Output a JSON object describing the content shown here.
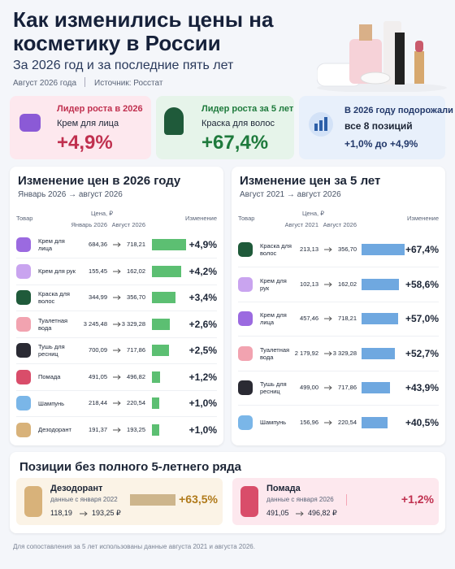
{
  "header": {
    "title": "Как изменились цены на косметику в России",
    "subtitle": "За 2026 год и за последние пять лет",
    "date": "Август 2026 года",
    "source": "Источник: Росстат"
  },
  "cards": [
    {
      "label": "Лидер роста в 2026",
      "item": "Крем для лица",
      "value": "+4,9%"
    },
    {
      "label": "Лидер роста за 5 лет",
      "item": "Краска для волос",
      "value": "+67,4%"
    },
    {
      "label": "В 2026 году подорожали",
      "item": "все 8 позиций",
      "value": "+1,0% до +4,9%"
    }
  ],
  "table_2026": {
    "title": "Изменение цен в 2026 году",
    "period": "Январь 2026 → август 2026",
    "columns": {
      "item": "Товар",
      "price": "Цена, ₽",
      "from": "Январь 2026",
      "to": "Август 2026",
      "change": "Изменение"
    },
    "rows": [
      {
        "name": "Крем для лица",
        "from": "684,36",
        "to": "718,21",
        "change": {
          "value": 4.9,
          "label": "+4,9%"
        }
      },
      {
        "name": "Крем для рук",
        "from": "155,45",
        "to": "162,02",
        "change": {
          "value": 4.2,
          "label": "+4,2%"
        }
      },
      {
        "name": "Краска для волос",
        "from": "344,99",
        "to": "356,70",
        "change": {
          "value": 3.4,
          "label": "+3,4%"
        }
      },
      {
        "name": "Туалетная вода",
        "from": "3 245,48",
        "to": "3 329,28",
        "change": {
          "value": 2.6,
          "label": "+2,6%"
        }
      },
      {
        "name": "Тушь для ресниц",
        "from": "700,09",
        "to": "717,86",
        "change": {
          "value": 2.5,
          "label": "+2,5%"
        }
      },
      {
        "name": "Помада",
        "from": "491,05",
        "to": "496,82",
        "change": {
          "value": 1.2,
          "label": "+1,2%"
        }
      },
      {
        "name": "Шампунь",
        "from": "218,44",
        "to": "220,54",
        "change": {
          "value": 1.0,
          "label": "+1,0%"
        }
      },
      {
        "name": "Дезодорант",
        "from": "191,37",
        "to": "193,25",
        "change": {
          "value": 1.0,
          "label": "+1,0%"
        }
      }
    ]
  },
  "table_5y": {
    "title": "Изменение цен за 5 лет",
    "period": "Август 2021 → август 2026",
    "columns": {
      "item": "Товар",
      "price": "Цена, ₽",
      "from": "Август 2021",
      "to": "Август 2026",
      "change": "Изменение"
    },
    "rows": [
      {
        "name": "Краска для волос",
        "from": "213,13",
        "to": "356,70",
        "change": {
          "value": 67.4,
          "label": "+67,4%"
        }
      },
      {
        "name": "Крем для рук",
        "from": "102,13",
        "to": "162,02",
        "change": {
          "value": 58.6,
          "label": "+58,6%"
        }
      },
      {
        "name": "Крем для лица",
        "from": "457,46",
        "to": "718,21",
        "change": {
          "value": 57.0,
          "label": "+57,0%"
        }
      },
      {
        "name": "Туалетная вода",
        "from": "2 179,92",
        "to": "3 329,28",
        "change": {
          "value": 52.7,
          "label": "+52,7%"
        }
      },
      {
        "name": "Тушь для ресниц",
        "from": "499,00",
        "to": "717,86",
        "change": {
          "value": 43.9,
          "label": "+43,9%"
        }
      },
      {
        "name": "Шампунь",
        "from": "156,96",
        "to": "220,54",
        "change": {
          "value": 40.5,
          "label": "+40,5%"
        }
      }
    ]
  },
  "partial": {
    "title": "Позиции без полного 5-летнего ряда",
    "items": [
      {
        "name": "Дезодорант",
        "note": "данные с января 2022",
        "from": "118,19",
        "to": "193,25 ₽",
        "change": {
          "value": 63.5,
          "label": "+63,5%"
        }
      },
      {
        "name": "Помада",
        "note": "данные с января 2026",
        "from": "491,05",
        "to": "496,82 ₽",
        "change": {
          "value": 1.2,
          "label": "+1,2%"
        }
      }
    ]
  },
  "footnote": "Для сопоставления за 5 лет использованы данные августа 2021 и августа 2026."
}
